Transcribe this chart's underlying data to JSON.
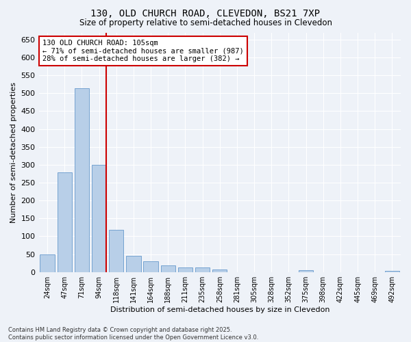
{
  "title1": "130, OLD CHURCH ROAD, CLEVEDON, BS21 7XP",
  "title2": "Size of property relative to semi-detached houses in Clevedon",
  "xlabel": "Distribution of semi-detached houses by size in Clevedon",
  "ylabel": "Number of semi-detached properties",
  "categories": [
    "24sqm",
    "47sqm",
    "71sqm",
    "94sqm",
    "118sqm",
    "141sqm",
    "164sqm",
    "188sqm",
    "211sqm",
    "235sqm",
    "258sqm",
    "281sqm",
    "305sqm",
    "328sqm",
    "352sqm",
    "375sqm",
    "398sqm",
    "422sqm",
    "445sqm",
    "469sqm",
    "492sqm"
  ],
  "values": [
    50,
    278,
    515,
    300,
    118,
    46,
    30,
    18,
    13,
    13,
    7,
    0,
    0,
    0,
    0,
    5,
    0,
    0,
    0,
    0,
    3
  ],
  "bar_color": "#b8cfe8",
  "bar_edge_color": "#6699cc",
  "vline_color": "#cc0000",
  "annotation_title": "130 OLD CHURCH ROAD: 105sqm",
  "annotation_line1": "← 71% of semi-detached houses are smaller (987)",
  "annotation_line2": "28% of semi-detached houses are larger (382) →",
  "annotation_box_color": "#ffffff",
  "annotation_box_edge": "#cc0000",
  "ylim": [
    0,
    670
  ],
  "yticks": [
    0,
    50,
    100,
    150,
    200,
    250,
    300,
    350,
    400,
    450,
    500,
    550,
    600,
    650
  ],
  "footer1": "Contains HM Land Registry data © Crown copyright and database right 2025.",
  "footer2": "Contains public sector information licensed under the Open Government Licence v3.0.",
  "bg_color": "#eef2f8",
  "plot_bg_color": "#eef2f8",
  "vline_index": 3
}
